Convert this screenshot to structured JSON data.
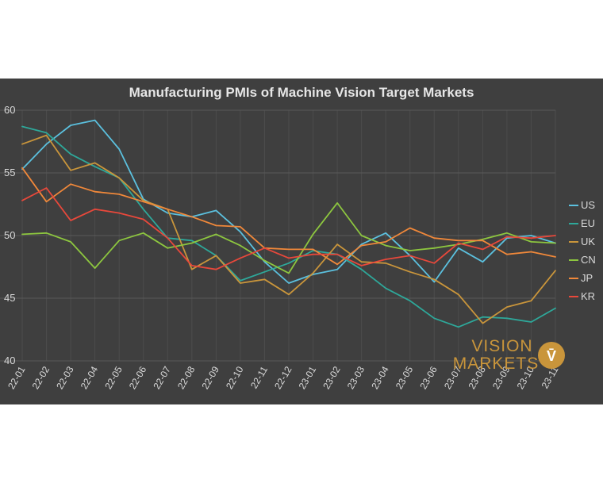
{
  "chart_data": {
    "type": "line",
    "title": "Manufacturing PMIs of Machine Vision Target Markets",
    "xlabel": "",
    "ylabel": "",
    "ylim": [
      40,
      60
    ],
    "yticks": [
      40,
      45,
      50,
      55,
      60
    ],
    "grid": true,
    "legend_position": "right",
    "categories": [
      "22-01",
      "22-02",
      "22-03",
      "22-04",
      "22-05",
      "22-06",
      "22-07",
      "22-08",
      "22-09",
      "22-10",
      "22-11",
      "22-12",
      "23-01",
      "23-02",
      "23-03",
      "23-04",
      "23-05",
      "23-06",
      "23-07",
      "23-08",
      "23-09",
      "23-10",
      "23-11"
    ],
    "series": [
      {
        "name": "US",
        "color": "#5bc0de",
        "values": [
          55.3,
          57.3,
          58.8,
          59.2,
          56.9,
          52.9,
          51.8,
          51.5,
          52.0,
          50.3,
          47.9,
          46.2,
          46.9,
          47.3,
          49.3,
          50.2,
          48.4,
          46.3,
          49.0,
          47.9,
          49.8,
          50.0,
          49.4
        ]
      },
      {
        "name": "EU",
        "color": "#2ea89a",
        "values": [
          58.7,
          58.2,
          56.5,
          55.5,
          54.6,
          52.1,
          49.8,
          49.6,
          48.4,
          46.4,
          47.1,
          47.8,
          48.8,
          48.5,
          47.3,
          45.8,
          44.8,
          43.4,
          42.7,
          43.5,
          43.4,
          43.1,
          44.2
        ]
      },
      {
        "name": "UK",
        "color": "#c9953b",
        "values": [
          57.3,
          58.0,
          55.2,
          55.8,
          54.6,
          52.8,
          52.1,
          47.3,
          48.4,
          46.2,
          46.5,
          45.3,
          47.0,
          49.3,
          47.9,
          47.8,
          47.1,
          46.5,
          45.3,
          43.0,
          44.3,
          44.8,
          47.2
        ]
      },
      {
        "name": "CN",
        "color": "#8dc63f",
        "values": [
          50.1,
          50.2,
          49.5,
          47.4,
          49.6,
          50.2,
          49.0,
          49.4,
          50.1,
          49.2,
          48.0,
          47.0,
          50.1,
          52.6,
          50.0,
          49.2,
          48.8,
          49.0,
          49.3,
          49.7,
          50.2,
          49.5,
          49.4
        ]
      },
      {
        "name": "JP",
        "color": "#f0883a",
        "values": [
          55.4,
          52.7,
          54.1,
          53.5,
          53.3,
          52.7,
          52.1,
          51.5,
          50.8,
          50.7,
          49.0,
          48.9,
          48.9,
          47.7,
          49.2,
          49.5,
          50.6,
          49.8,
          49.6,
          49.6,
          48.5,
          48.7,
          48.3
        ]
      },
      {
        "name": "KR",
        "color": "#e8483b",
        "values": [
          52.8,
          53.8,
          51.2,
          52.1,
          51.8,
          51.3,
          49.8,
          47.6,
          47.3,
          48.2,
          49.0,
          48.2,
          48.5,
          48.5,
          47.6,
          48.1,
          48.4,
          47.8,
          49.4,
          48.9,
          49.9,
          49.8,
          50.0
        ]
      }
    ],
    "annotations": [
      {
        "text": "VISION MARKETS",
        "location": "bottom-right"
      }
    ]
  },
  "logo": {
    "line1": "VISION",
    "line2": "MARKETS",
    "glyph": "V̄",
    "color": "#c9953b"
  }
}
